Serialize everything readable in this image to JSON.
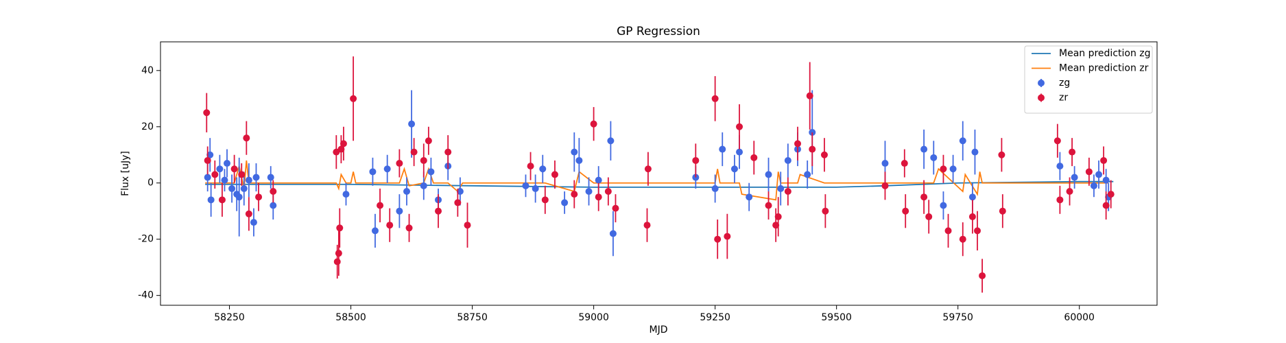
{
  "chart_data": {
    "type": "scatter",
    "title": "GP Regression",
    "x_label": "MJD",
    "y_label": "Flux [uJy]",
    "xlim": [
      58108,
      60160
    ],
    "ylim": [
      -43.5,
      50.2
    ],
    "xticks": [
      58250,
      58500,
      58750,
      59000,
      59250,
      59500,
      59750,
      60000
    ],
    "yticks": [
      -40,
      -20,
      0,
      20,
      40
    ],
    "grid": false,
    "legend": "upper right",
    "series": [
      {
        "name": "Mean prediction zg",
        "type": "line",
        "color": "#1f77b4",
        "x": [
          58200,
          58350,
          58500,
          58750,
          59000,
          59250,
          59500,
          59600,
          59750,
          60000,
          60070
        ],
        "values": [
          -0.5,
          -0.5,
          -0.5,
          -1,
          -1.5,
          -1.5,
          -1.5,
          -1,
          0,
          0.5,
          0.5
        ]
      },
      {
        "name": "Mean prediction zr",
        "type": "line",
        "color": "#ff7f0e",
        "x": [
          58200,
          58260,
          58270,
          58280,
          58285,
          58290,
          58300,
          58340,
          58470,
          58475,
          58480,
          58490,
          58500,
          58505,
          58510,
          58600,
          58610,
          58620,
          58650,
          58660,
          58670,
          58700,
          58720,
          58730,
          58900,
          58960,
          58970,
          59000,
          59010,
          59250,
          59255,
          59260,
          59300,
          59305,
          59375,
          59380,
          59385,
          59420,
          59425,
          59475,
          59640,
          59700,
          59710,
          59760,
          59765,
          59790,
          59795,
          59800,
          59840,
          59960,
          60060
        ],
        "values": [
          0,
          0,
          6,
          -2,
          8,
          0,
          0,
          0,
          0,
          -2,
          3,
          0,
          0,
          4,
          0,
          0,
          5,
          -1,
          0,
          5,
          0,
          0,
          -3,
          0,
          0,
          -3,
          4,
          0,
          0,
          0,
          5,
          0,
          0,
          -4,
          -6,
          4,
          0,
          0,
          3,
          0,
          0,
          0,
          5,
          -3,
          3,
          -4,
          4,
          0,
          0,
          0,
          0
        ]
      },
      {
        "name": "zg",
        "type": "errorbar",
        "color": "#4169e1",
        "x": [
          58205,
          58210,
          58212,
          58230,
          58240,
          58245,
          58255,
          58265,
          58270,
          58280,
          58290,
          58300,
          58305,
          58335,
          58340,
          58490,
          58545,
          58550,
          58575,
          58600,
          58615,
          58625,
          58650,
          58665,
          58680,
          58700,
          58725,
          58860,
          58880,
          58895,
          58940,
          58960,
          58970,
          58990,
          59010,
          59035,
          59040,
          59210,
          59250,
          59265,
          59290,
          59300,
          59320,
          59360,
          59385,
          59400,
          59420,
          59440,
          59450,
          59600,
          59680,
          59700,
          59720,
          59740,
          59760,
          59780,
          59785,
          59960,
          59990,
          60030,
          60040,
          60055,
          60060
        ],
        "values": [
          2,
          10,
          -6,
          5,
          1,
          7,
          -2,
          -4,
          -5,
          -2,
          1,
          -14,
          2,
          2,
          -8,
          -4,
          4,
          -17,
          5,
          -10,
          -3,
          21,
          -1,
          4,
          -6,
          6,
          -3,
          -1,
          -2,
          5,
          -7,
          11,
          8,
          -3,
          1,
          15,
          -18,
          2,
          -2,
          12,
          5,
          11,
          -5,
          3,
          -2,
          8,
          12,
          3,
          18,
          7,
          12,
          9,
          -8,
          5,
          15,
          -5,
          11,
          6,
          2,
          -1,
          3,
          1,
          -5
        ],
        "errors": [
          5,
          6,
          6,
          5,
          4,
          5,
          5,
          6,
          14,
          6,
          6,
          5,
          5,
          4,
          5,
          4,
          5,
          6,
          5,
          6,
          5,
          12,
          5,
          5,
          4,
          5,
          5,
          4,
          5,
          5,
          4,
          7,
          8,
          5,
          5,
          7,
          8,
          4,
          5,
          6,
          5,
          6,
          5,
          6,
          6,
          6,
          6,
          5,
          15,
          8,
          7,
          6,
          5,
          5,
          7,
          5,
          8,
          5,
          4,
          4,
          5,
          4,
          5
        ]
      },
      {
        "name": "zr",
        "type": "errorbar",
        "color": "#dc143c",
        "x": [
          58203,
          58205,
          58220,
          58235,
          58260,
          58275,
          58285,
          58290,
          58310,
          58340,
          58470,
          58472,
          58475,
          58477,
          58480,
          58485,
          58505,
          58560,
          58580,
          58600,
          58620,
          58630,
          58650,
          58660,
          58680,
          58700,
          58720,
          58740,
          58870,
          58900,
          58920,
          58960,
          59000,
          59010,
          59030,
          59045,
          59110,
          59112,
          59210,
          59250,
          59255,
          59275,
          59300,
          59330,
          59360,
          59375,
          59380,
          59400,
          59420,
          59445,
          59450,
          59475,
          59477,
          59600,
          59640,
          59642,
          59680,
          59690,
          59720,
          59730,
          59760,
          59780,
          59790,
          59800,
          59840,
          59842,
          59955,
          59960,
          59980,
          59985,
          60020,
          60050,
          60055,
          60065
        ],
        "values": [
          25,
          8,
          3,
          -6,
          5,
          3,
          16,
          -11,
          -5,
          -3,
          11,
          -28,
          -25,
          -16,
          12,
          14,
          30,
          -8,
          -15,
          7,
          -16,
          11,
          8,
          15,
          -10,
          11,
          -7,
          -15,
          6,
          -6,
          3,
          -4,
          21,
          -5,
          -3,
          -9,
          -15,
          5,
          8,
          30,
          -20,
          -19,
          20,
          9,
          -8,
          -15,
          -12,
          -3,
          14,
          31,
          12,
          10,
          -10,
          -1,
          7,
          -10,
          -5,
          -12,
          5,
          -17,
          -20,
          -12,
          -17,
          -33,
          10,
          -10,
          15,
          -6,
          -3,
          11,
          4,
          8,
          -8,
          -4
        ],
        "errors": [
          7,
          5,
          5,
          6,
          5,
          4,
          6,
          6,
          5,
          4,
          6,
          6,
          8,
          7,
          5,
          6,
          15,
          6,
          6,
          5,
          5,
          5,
          6,
          5,
          6,
          6,
          5,
          8,
          5,
          5,
          5,
          5,
          6,
          5,
          5,
          5,
          6,
          6,
          6,
          8,
          7,
          8,
          8,
          6,
          5,
          6,
          7,
          5,
          6,
          12,
          6,
          6,
          6,
          5,
          5,
          6,
          6,
          6,
          5,
          6,
          6,
          6,
          7,
          6,
          6,
          6,
          6,
          5,
          5,
          5,
          5,
          5,
          5,
          5
        ]
      }
    ]
  }
}
